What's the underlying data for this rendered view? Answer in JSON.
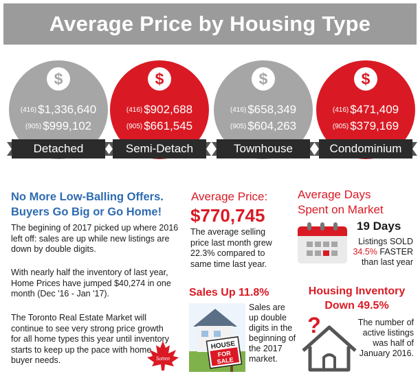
{
  "header": {
    "title": "Average Price by Housing Type"
  },
  "housing_types": [
    {
      "label": "Detached",
      "code_416": "(416)",
      "price_416": "$1,336,640",
      "code_905": "(905)",
      "price_905": "$999,102",
      "color": "#a6a6a6",
      "icon": "dollar-icon"
    },
    {
      "label": "Semi-Detach",
      "code_416": "(416)",
      "price_416": "$902,688",
      "code_905": "(905)",
      "price_905": "$661,545",
      "color": "#d91a24",
      "icon": "dollar-icon"
    },
    {
      "label": "Townhouse",
      "code_416": "(416)",
      "price_416": "$658,349",
      "code_905": "(905)",
      "price_905": "$604,263",
      "color": "#a6a6a6",
      "icon": "dollar-icon"
    },
    {
      "label": "Condominium",
      "code_416": "(416)",
      "price_416": "$471,409",
      "code_905": "(905)",
      "price_905": "$379,169",
      "color": "#d91a24",
      "icon": "dollar-icon"
    }
  ],
  "article": {
    "heading_line1": "No More Low-Balling Offers.",
    "heading_line2": "Buyers Go Big or Go Home!",
    "para1": "The begining of 2017 picked up where 2016 left off: sales are up while new listings are down by double digits.",
    "para2": "With nearly half the inventory of last year, Home Prices have jumped $40,274 in one month (Dec '16 - Jan '17).",
    "para3": "The Toronto Real Estate Market will continue to see very strong price growth for all home types this year until inventory starts to keep up the pace with home buyer needs."
  },
  "average_price": {
    "label": "Average Price:",
    "value": "$770,745",
    "description": "The average selling price last month grew 22.3% compared to same time last year."
  },
  "days_on_market": {
    "title_line1": "Average Days",
    "title_line2": "Spent on Market",
    "value": "19 Days",
    "desc_line1": "Listings SOLD",
    "desc_accent": "34.5%",
    "desc_line2": " FASTER",
    "desc_line3": "than last year"
  },
  "sales": {
    "title": "Sales Up 11.8%",
    "description": "Sales are up double digits in the beginning of the 2017 market.",
    "sign_line1": "HOUSE",
    "sign_line2": "FOR",
    "sign_line3": "SALE"
  },
  "inventory": {
    "title_line1": "Housing Inventory",
    "title_line2": "Down 49.5%",
    "description": "The number of active listings was half of January 2016."
  },
  "logo": {
    "text": "Sotten"
  },
  "colors": {
    "accent_red": "#d91a24",
    "gray": "#a6a6a6",
    "blue": "#2e6bb0",
    "dark": "#2b2b2b"
  }
}
